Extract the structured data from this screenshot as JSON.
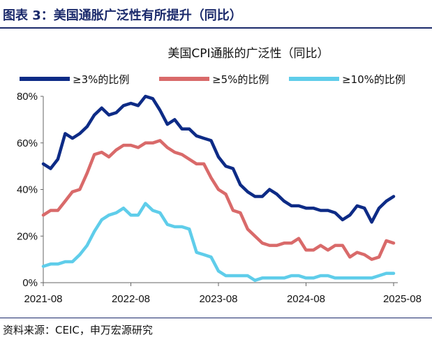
{
  "figure": {
    "title": "图表 3：美国通胀广泛性有所提升（同比）",
    "source": "资料来源：CEIC，申万宏源研究"
  },
  "chart_data": {
    "type": "line",
    "title": "美国CPI通胀的广泛性（同比）",
    "xlabel": "",
    "ylabel": "",
    "ylim": [
      0,
      80
    ],
    "yticks": [
      "0%",
      "20%",
      "40%",
      "60%",
      "80%"
    ],
    "xticks": [
      "2021-08",
      "2022-08",
      "2023-08",
      "2024-08",
      "2025-08"
    ],
    "x": [
      "2021-08",
      "2021-09",
      "2021-10",
      "2021-11",
      "2021-12",
      "2022-01",
      "2022-02",
      "2022-03",
      "2022-04",
      "2022-05",
      "2022-06",
      "2022-07",
      "2022-08",
      "2022-09",
      "2022-10",
      "2022-11",
      "2022-12",
      "2023-01",
      "2023-02",
      "2023-03",
      "2023-04",
      "2023-05",
      "2023-06",
      "2023-07",
      "2023-08",
      "2023-09",
      "2023-10",
      "2023-11",
      "2023-12",
      "2024-01",
      "2024-02",
      "2024-03",
      "2024-04",
      "2024-05",
      "2024-06",
      "2024-07",
      "2024-08",
      "2024-09",
      "2024-10",
      "2024-11",
      "2024-12",
      "2025-01",
      "2025-02",
      "2025-03",
      "2025-04",
      "2025-05",
      "2025-06",
      "2025-07",
      "2025-08"
    ],
    "series": [
      {
        "name": "≥3%的比例",
        "color": "#0d2b86",
        "values": [
          51,
          49,
          53,
          64,
          62,
          64,
          67,
          72,
          75,
          72,
          73,
          76,
          77,
          76,
          80,
          79,
          74,
          68,
          70,
          66,
          66,
          63,
          62,
          61,
          54,
          50,
          49,
          42,
          39,
          37,
          37,
          40,
          38,
          35,
          33,
          33,
          32,
          32,
          31,
          31,
          30,
          27,
          29,
          33,
          32,
          26,
          32,
          35,
          37
        ]
      },
      {
        "name": "≥5%的比例",
        "color": "#d96a6a",
        "values": [
          29,
          31,
          31,
          35,
          39,
          40,
          47,
          55,
          56,
          54,
          57,
          59,
          59,
          58,
          60,
          60,
          61,
          58,
          56,
          55,
          53,
          51,
          51,
          45,
          40,
          38,
          31,
          30,
          23,
          20,
          17,
          16,
          16,
          17,
          17,
          19,
          14,
          14,
          16,
          14,
          16,
          16,
          11,
          13,
          12,
          10,
          11,
          18,
          17
        ]
      },
      {
        "name": "≥10%的比例",
        "color": "#5fcdea",
        "values": [
          7,
          8,
          8,
          9,
          9,
          12,
          16,
          22,
          27,
          29,
          30,
          32,
          29,
          29,
          34,
          31,
          30,
          25,
          24,
          24,
          23,
          13,
          12,
          11,
          5,
          3,
          3,
          3,
          3,
          1,
          2,
          2,
          2,
          2,
          3,
          3,
          2,
          2,
          3,
          3,
          2,
          2,
          2,
          2,
          2,
          2,
          3,
          4,
          4
        ]
      }
    ],
    "legend": "top"
  }
}
